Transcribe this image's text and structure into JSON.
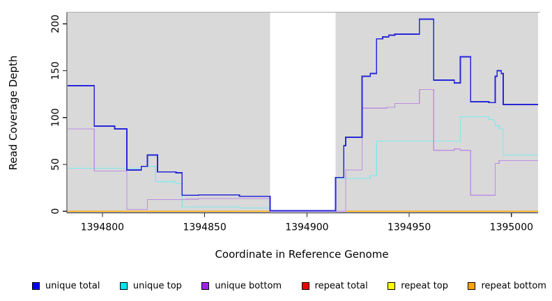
{
  "chart_data": {
    "type": "line",
    "subtype": "step-post-coverage-plot",
    "title": "",
    "xlabel": "Coordinate in Reference Genome",
    "ylabel": "Read Coverage Depth",
    "xlim": [
      1394783,
      1395013
    ],
    "ylim": [
      0,
      212
    ],
    "x_ticks": [
      1394800,
      1394850,
      1394900,
      1394950,
      1395000
    ],
    "y_ticks": [
      0,
      50,
      100,
      150,
      200
    ],
    "grid": false,
    "legend_position": "bottom",
    "panel_bg": "#D9D9D9",
    "panel_top_border": "#ABABAB",
    "axis_color": "#222222",
    "gap_region": {
      "x0": 1394882,
      "x1": 1394914,
      "color": "#FFFFFF"
    },
    "draw_order": [
      "repeat total",
      "repeat top",
      "repeat bottom",
      "unique top",
      "unique bottom",
      "unique total"
    ],
    "series": [
      {
        "name": "unique total",
        "line_color": "#2727D8",
        "legend_color": "#0000EE",
        "width": 1.8,
        "points": [
          [
            1394783,
            134
          ],
          [
            1394796,
            91
          ],
          [
            1394806,
            88
          ],
          [
            1394812,
            44
          ],
          [
            1394819,
            48
          ],
          [
            1394822,
            60
          ],
          [
            1394827,
            42
          ],
          [
            1394836,
            41
          ],
          [
            1394839,
            17
          ],
          [
            1394847,
            17.5
          ],
          [
            1394867,
            16
          ],
          [
            1394882,
            0.5
          ],
          [
            1394914,
            36
          ],
          [
            1394918,
            70
          ],
          [
            1394919,
            79
          ],
          [
            1394927,
            144
          ],
          [
            1394931,
            147
          ],
          [
            1394934,
            184
          ],
          [
            1394937,
            186
          ],
          [
            1394940,
            188
          ],
          [
            1394943,
            189
          ],
          [
            1394955,
            205
          ],
          [
            1394962,
            140
          ],
          [
            1394972,
            137
          ],
          [
            1394975,
            165
          ],
          [
            1394980,
            117
          ],
          [
            1394989,
            116
          ],
          [
            1394992,
            144
          ],
          [
            1394993,
            150
          ],
          [
            1394995,
            147
          ],
          [
            1394996,
            114
          ]
        ]
      },
      {
        "name": "unique top",
        "line_color": "#7FE9EC",
        "legend_color": "#00E5EE",
        "width": 1.2,
        "points": [
          [
            1394783,
            46
          ],
          [
            1394819,
            48
          ],
          [
            1394826,
            31.5
          ],
          [
            1394836,
            29.5
          ],
          [
            1394839,
            4.5
          ],
          [
            1394867,
            3.5
          ],
          [
            1394882,
            0
          ],
          [
            1394914,
            35
          ],
          [
            1394931,
            38
          ],
          [
            1394934,
            75
          ],
          [
            1394975,
            101
          ],
          [
            1394989,
            98
          ],
          [
            1394991,
            96
          ],
          [
            1394992,
            91.5
          ],
          [
            1394994,
            88
          ],
          [
            1394996,
            60
          ]
        ]
      },
      {
        "name": "unique bottom",
        "line_color": "#BD8DE3",
        "legend_color": "#A020F0",
        "width": 1.2,
        "points": [
          [
            1394783,
            88
          ],
          [
            1394796,
            43
          ],
          [
            1394812,
            2
          ],
          [
            1394822,
            12.5
          ],
          [
            1394841,
            13
          ],
          [
            1394847,
            13.5
          ],
          [
            1394882,
            0
          ],
          [
            1394919,
            44
          ],
          [
            1394927,
            110
          ],
          [
            1394939,
            111
          ],
          [
            1394943,
            115
          ],
          [
            1394955,
            130
          ],
          [
            1394962,
            65
          ],
          [
            1394972,
            66.5
          ],
          [
            1394975,
            65
          ],
          [
            1394980,
            17
          ],
          [
            1394992,
            51
          ],
          [
            1394994,
            54
          ]
        ]
      },
      {
        "name": "repeat total",
        "line_color": "#DD0000",
        "legend_color": "#EE0000",
        "width": 1.2,
        "points": [
          [
            1394783,
            0
          ]
        ]
      },
      {
        "name": "repeat top",
        "line_color": "#F0F000",
        "legend_color": "#FFFF00",
        "width": 1.2,
        "points": [
          [
            1394783,
            0
          ]
        ]
      },
      {
        "name": "repeat bottom",
        "line_color": "#FFA500",
        "legend_color": "#FFA500",
        "width": 1.8,
        "points": [
          [
            1394783,
            0
          ]
        ]
      }
    ]
  }
}
